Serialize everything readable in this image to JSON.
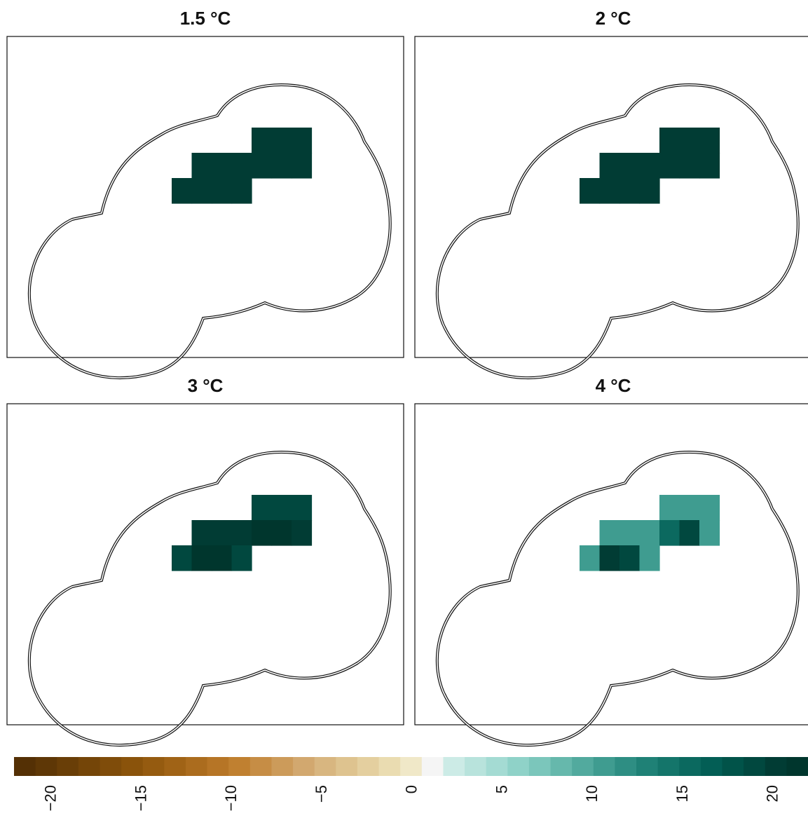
{
  "panels": [
    {
      "title": "1.5 °C",
      "cells": [
        [
          null,
          null,
          null,
          null,
          20,
          20,
          20
        ],
        [
          null,
          20,
          20,
          20,
          20,
          20,
          20
        ],
        [
          20,
          20,
          20,
          20,
          null,
          null,
          null
        ]
      ]
    },
    {
      "title": "2 °C",
      "cells": [
        [
          null,
          null,
          null,
          null,
          20,
          20,
          20
        ],
        [
          null,
          20,
          20,
          20,
          20,
          20,
          20
        ],
        [
          20,
          20,
          20,
          20,
          null,
          null,
          null
        ]
      ]
    },
    {
      "title": "3 °C",
      "cells": [
        [
          null,
          null,
          null,
          null,
          19,
          19,
          19
        ],
        [
          null,
          20,
          20,
          20,
          21,
          21,
          20
        ],
        [
          19,
          21,
          21,
          19,
          null,
          null,
          null
        ]
      ]
    },
    {
      "title": "4 °C",
      "cells": [
        [
          null,
          null,
          null,
          null,
          11,
          11,
          11
        ],
        [
          null,
          11,
          11,
          11,
          16,
          19,
          11
        ],
        [
          11,
          20,
          19,
          11,
          null,
          null,
          null
        ]
      ]
    }
  ],
  "legend": {
    "min": -22,
    "max": 22,
    "ticks": [
      "-20",
      "-15",
      "-10",
      "-5",
      "0",
      "5",
      "10",
      "15",
      "20"
    ],
    "tick_values": [
      -20,
      -15,
      -10,
      -5,
      0,
      5,
      10,
      15,
      20
    ],
    "colors": [
      "#543005",
      "#5e3706",
      "#693e07",
      "#744508",
      "#7f4c0a",
      "#8a530b",
      "#955b10",
      "#a06316",
      "#ab6c1e",
      "#b67526",
      "#c08030",
      "#c68d45",
      "#cc9b5a",
      "#d2a86f",
      "#d8b680",
      "#dec38f",
      "#e4cf9f",
      "#eadcb1",
      "#f0e8c8",
      "#f5f5f5",
      "#ccebe6",
      "#b8e3dc",
      "#a4dbd3",
      "#8fd2c8",
      "#7bc6bb",
      "#66b8ac",
      "#52aa9e",
      "#3f9c90",
      "#2e8e83",
      "#1f8176",
      "#14756a",
      "#0b695f",
      "#035e55",
      "#015349",
      "#01483f",
      "#013c34",
      "#00362d"
    ]
  }
}
